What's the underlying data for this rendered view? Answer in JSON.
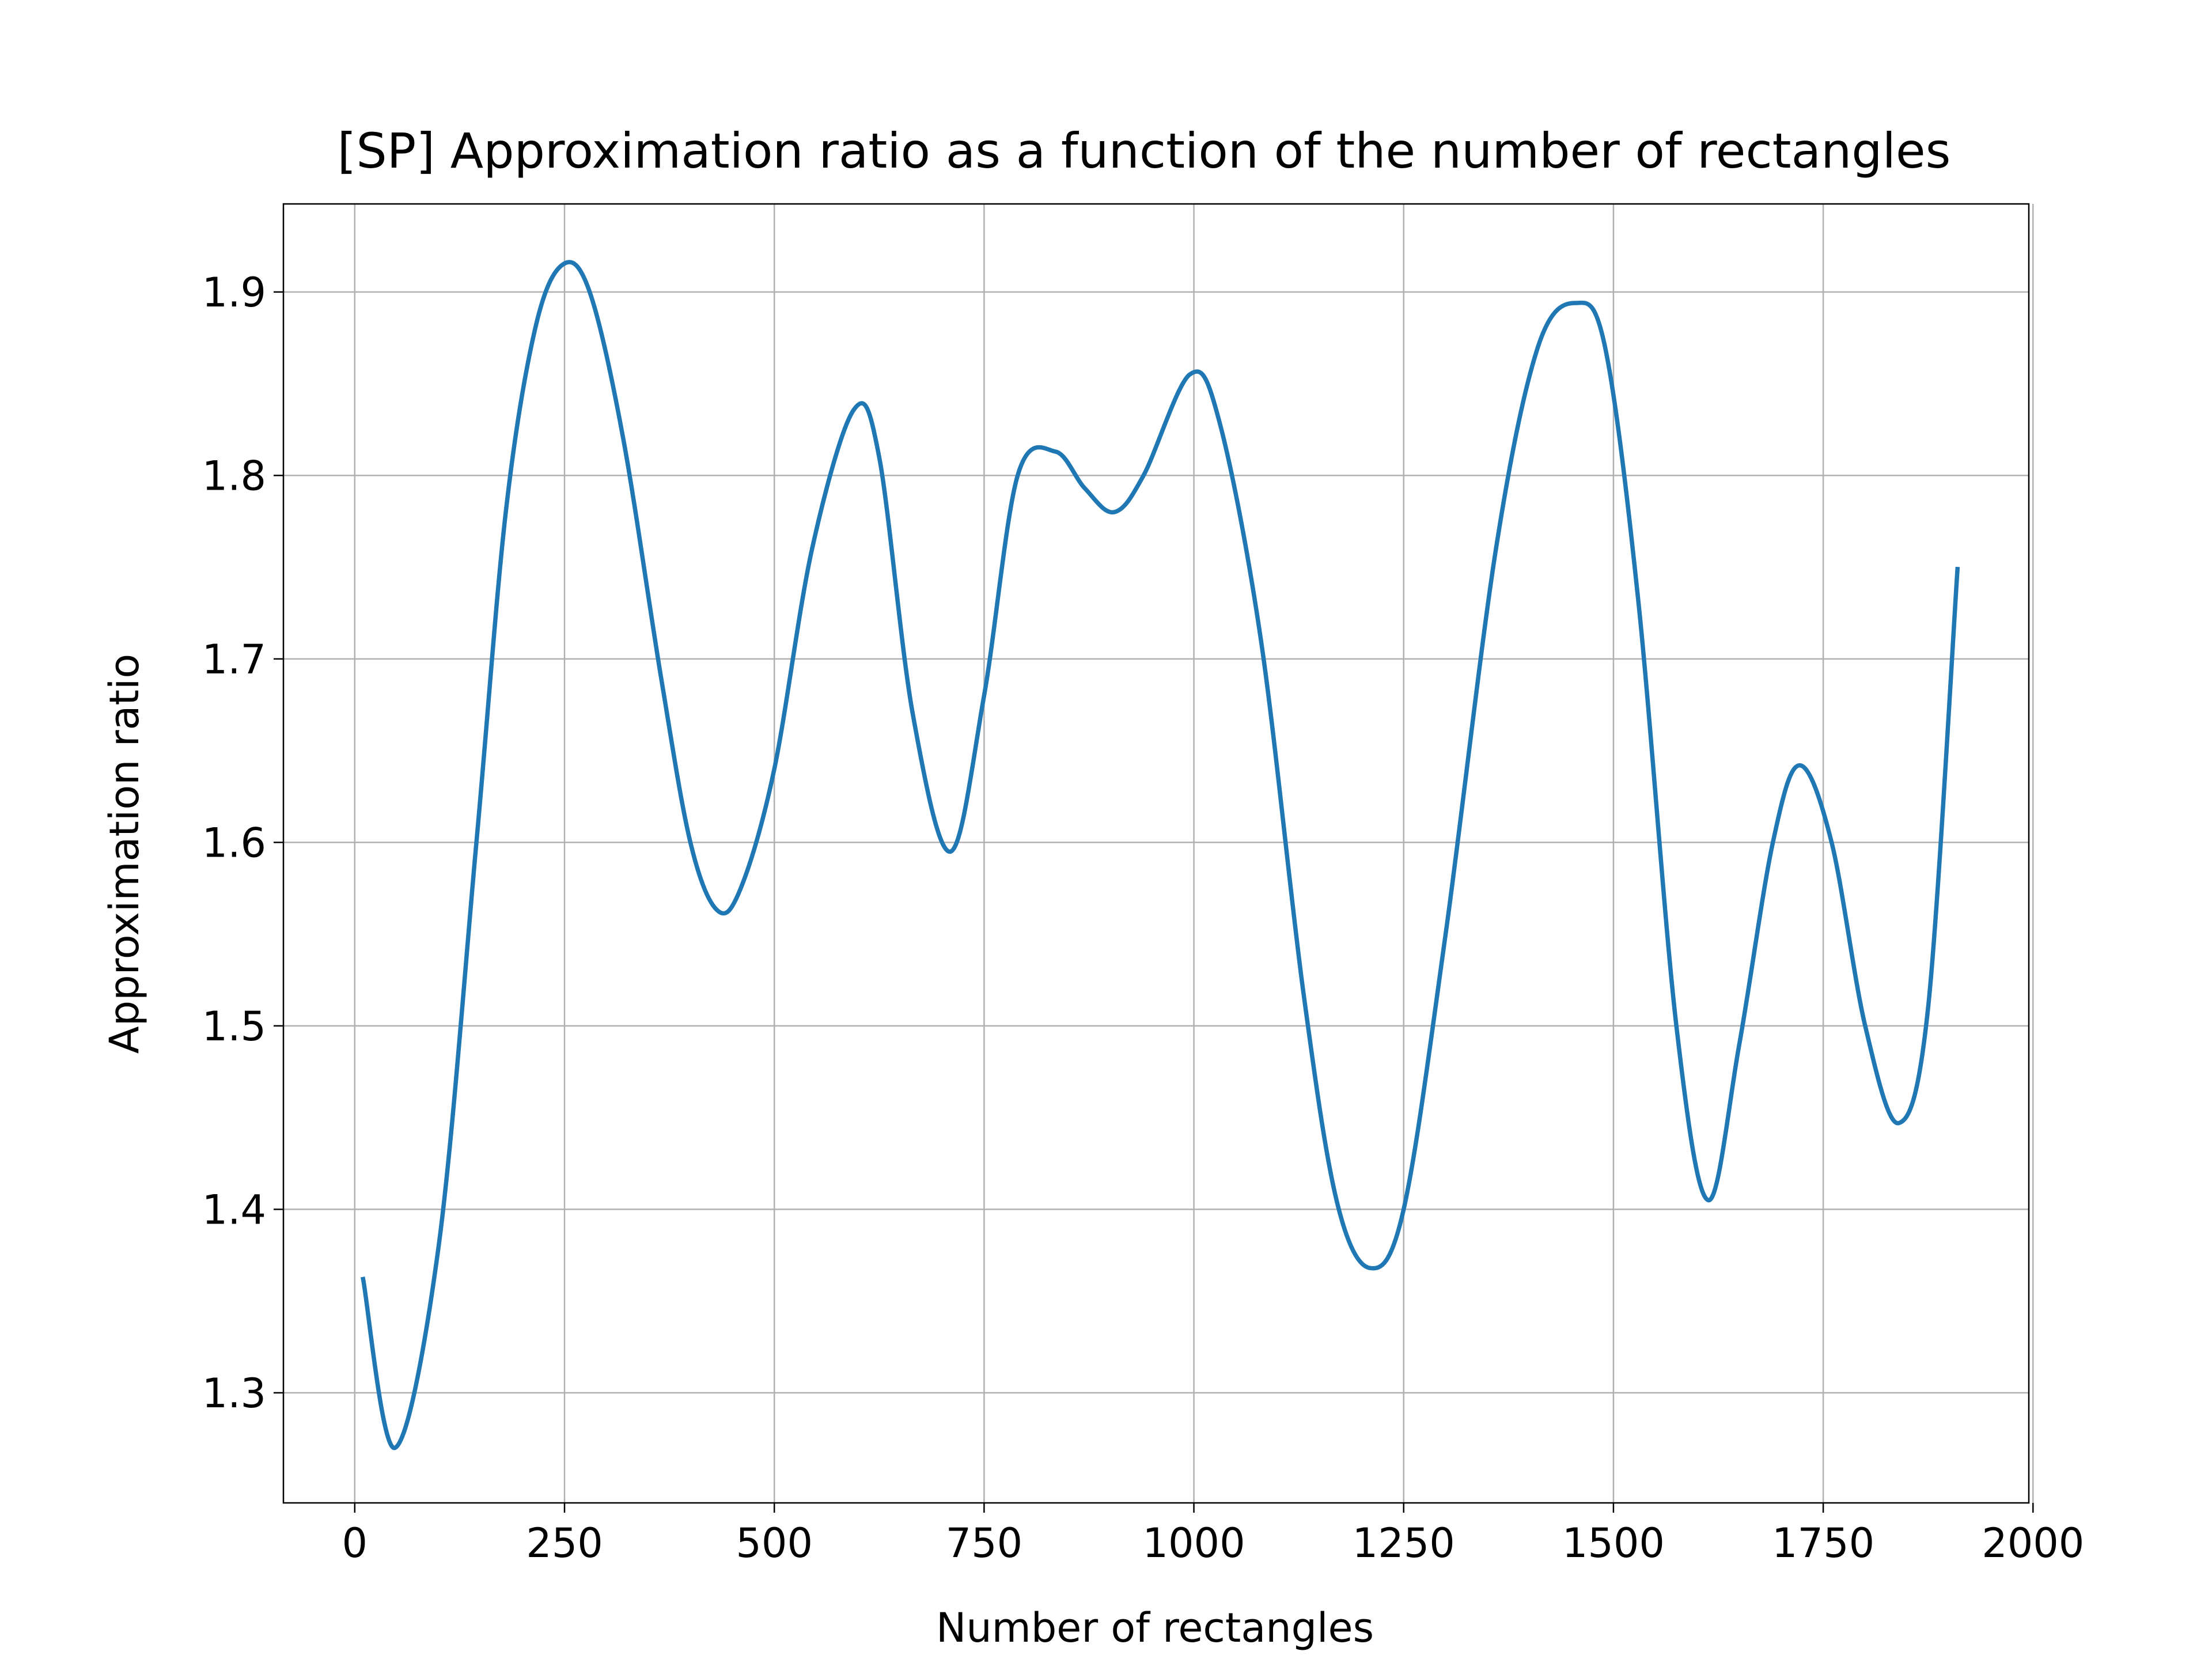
{
  "chart_data": {
    "type": "line",
    "title": "[SP] Approximation ratio as a function of the number of rectangles",
    "xlabel": "Number of rectangles",
    "ylabel": "Approximation ratio",
    "xlim": [
      -85,
      1995
    ],
    "ylim": [
      1.24,
      1.948
    ],
    "x_ticks": [
      0,
      250,
      500,
      750,
      1000,
      1250,
      1500,
      1750,
      2000
    ],
    "x_tick_labels": [
      "0",
      "250",
      "500",
      "750",
      "1000",
      "1250",
      "1500",
      "1750",
      "2000"
    ],
    "y_ticks": [
      1.3,
      1.4,
      1.5,
      1.6,
      1.7,
      1.8,
      1.9
    ],
    "y_tick_labels": [
      "1.3",
      "1.4",
      "1.5",
      "1.6",
      "1.7",
      "1.8",
      "1.9"
    ],
    "grid": true,
    "series": [
      {
        "color": "#1f77b4",
        "points": [
          [
            10,
            1.362
          ],
          [
            48,
            1.27
          ],
          [
            100,
            1.38
          ],
          [
            145,
            1.6
          ],
          [
            180,
            1.78
          ],
          [
            215,
            1.88
          ],
          [
            248,
            1.915
          ],
          [
            280,
            1.9
          ],
          [
            320,
            1.82
          ],
          [
            365,
            1.69
          ],
          [
            400,
            1.6
          ],
          [
            432,
            1.563
          ],
          [
            460,
            1.575
          ],
          [
            500,
            1.64
          ],
          [
            545,
            1.76
          ],
          [
            595,
            1.836
          ],
          [
            625,
            1.81
          ],
          [
            665,
            1.67
          ],
          [
            710,
            1.595
          ],
          [
            750,
            1.68
          ],
          [
            790,
            1.8
          ],
          [
            835,
            1.813
          ],
          [
            870,
            1.793
          ],
          [
            905,
            1.78
          ],
          [
            940,
            1.8
          ],
          [
            995,
            1.855
          ],
          [
            1030,
            1.83
          ],
          [
            1080,
            1.71
          ],
          [
            1130,
            1.52
          ],
          [
            1170,
            1.405
          ],
          [
            1210,
            1.368
          ],
          [
            1250,
            1.4
          ],
          [
            1300,
            1.55
          ],
          [
            1360,
            1.76
          ],
          [
            1410,
            1.87
          ],
          [
            1455,
            1.894
          ],
          [
            1490,
            1.87
          ],
          [
            1530,
            1.73
          ],
          [
            1575,
            1.5
          ],
          [
            1613,
            1.405
          ],
          [
            1650,
            1.49
          ],
          [
            1690,
            1.6
          ],
          [
            1722,
            1.642
          ],
          [
            1760,
            1.6
          ],
          [
            1800,
            1.5
          ],
          [
            1840,
            1.447
          ],
          [
            1875,
            1.51
          ],
          [
            1910,
            1.749
          ]
        ]
      }
    ]
  }
}
